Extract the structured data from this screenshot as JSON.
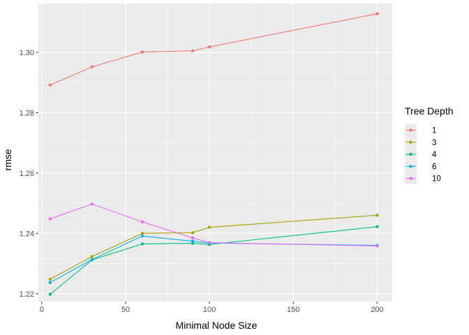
{
  "chart_data": {
    "type": "line",
    "title": "",
    "xlabel": "Minimal Node Size",
    "ylabel": "rmse",
    "xlim": [
      -2,
      209
    ],
    "ylim": [
      1.2174,
      1.3162
    ],
    "x_ticks": [
      0,
      50,
      100,
      150,
      200
    ],
    "x_tick_labels": [
      "0",
      "50",
      "100",
      "150",
      "200"
    ],
    "y_ticks": [
      1.22,
      1.24,
      1.26,
      1.28,
      1.3
    ],
    "y_tick_labels": [
      "1.22",
      "1.24",
      "1.26",
      "1.28",
      "1.30"
    ],
    "grid": true,
    "legend": {
      "title": "Tree Depth",
      "position": "right"
    },
    "series": [
      {
        "name": "1",
        "color": "#F8766D",
        "x": [
          5,
          30,
          60,
          90,
          100,
          200
        ],
        "y": [
          1.2892,
          1.2952,
          1.3001,
          1.3005,
          1.3018,
          1.3128
        ]
      },
      {
        "name": "3",
        "color": "#A3A500",
        "x": [
          5,
          30,
          60,
          90,
          100,
          200
        ],
        "y": [
          1.2248,
          1.2323,
          1.24,
          1.2402,
          1.242,
          1.246
        ]
      },
      {
        "name": "4",
        "color": "#00BF7D",
        "x": [
          5,
          30,
          60,
          90,
          100,
          200
        ],
        "y": [
          1.2198,
          1.2312,
          1.2365,
          1.2367,
          1.2363,
          1.2422
        ]
      },
      {
        "name": "6",
        "color": "#00B0F6",
        "x": [
          5,
          30,
          60,
          90,
          100,
          200
        ],
        "y": [
          1.2237,
          1.2313,
          1.2391,
          1.2374,
          1.2368,
          1.236
        ]
      },
      {
        "name": "10",
        "color": "#E76BF3",
        "x": [
          5,
          30,
          60,
          90,
          100,
          200
        ],
        "y": [
          1.2448,
          1.2497,
          1.2438,
          1.2385,
          1.2369,
          1.2358
        ]
      }
    ]
  },
  "style": {
    "panel_bg": "#EBEBEB",
    "grid_major": "#FFFFFF",
    "tick_color": "#333333"
  }
}
